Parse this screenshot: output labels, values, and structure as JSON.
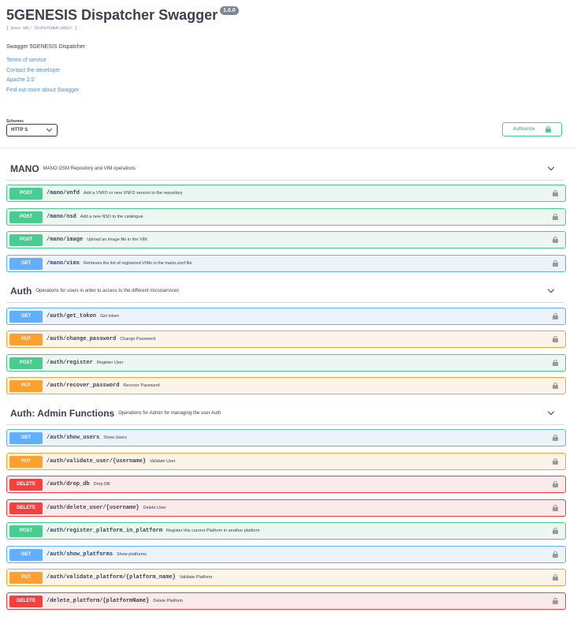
{
  "info": {
    "title": "5GENESIS Dispatcher Swagger",
    "version": "1.0.0",
    "base_url": "[ Base URL: DISPATCHER:8082/ ]",
    "description": "Swagger 5GENESIS Dispatcher",
    "links": [
      "Terms of service",
      "Contact the developer",
      "Apache 2.0",
      "Find out more about Swagger"
    ]
  },
  "schemes": {
    "label": "Schemes",
    "selected": "HTTP S"
  },
  "authorize": {
    "label": "Authorize"
  },
  "colors": {
    "post": "#49cc90",
    "get": "#61affe",
    "put": "#fca130",
    "delete": "#f93e3e"
  },
  "tags": [
    {
      "name": "MANO",
      "description": "MANO OSM Repository and VIM operations",
      "operations": [
        {
          "method": "POST",
          "path": "/mano/vnfd",
          "summary": "Add a VNFD or new VNFD version to the repository"
        },
        {
          "method": "POST",
          "path": "/mano/nsd",
          "summary": "Add a new NSD to the catalogue"
        },
        {
          "method": "POST",
          "path": "/mano/image",
          "summary": "Upload an image file in the VIM"
        },
        {
          "method": "GET",
          "path": "/mano/vims",
          "summary": "Retrieves the list of registered VIMs in the mano.conf file"
        }
      ]
    },
    {
      "name": "Auth",
      "description": "Operations for users in order to access to the different microservices",
      "operations": [
        {
          "method": "GET",
          "path": "/auth/get_token",
          "summary": "Get token"
        },
        {
          "method": "PUT",
          "path": "/auth/change_password",
          "summary": "Change Password"
        },
        {
          "method": "POST",
          "path": "/auth/register",
          "summary": "Register User"
        },
        {
          "method": "PUT",
          "path": "/auth/recover_password",
          "summary": "Recover Password"
        }
      ]
    },
    {
      "name": "Auth: Admin Functions",
      "description": "Operations for Admin for managing the user Auth",
      "operations": [
        {
          "method": "GET",
          "path": "/auth/show_users",
          "summary": "Show Users"
        },
        {
          "method": "PUT",
          "path": "/auth/validate_user/{username}",
          "summary": "Validate User"
        },
        {
          "method": "DELETE",
          "path": "/auth/drop_db",
          "summary": "Drop DB"
        },
        {
          "method": "DELETE",
          "path": "/auth/delete_user/{username}",
          "summary": "Delete User"
        },
        {
          "method": "POST",
          "path": "/auth/register_platform_in_platform",
          "summary": "Register this current Platform in another platform"
        },
        {
          "method": "GET",
          "path": "/auth/show_platforms",
          "summary": "Show platforms"
        },
        {
          "method": "PUT",
          "path": "/auth/validate_platform/{platform_name}",
          "summary": "Validate Platform"
        },
        {
          "method": "DELETE",
          "path": "/delete_platform/{platformName}",
          "summary": "Delete Platform"
        }
      ]
    }
  ]
}
